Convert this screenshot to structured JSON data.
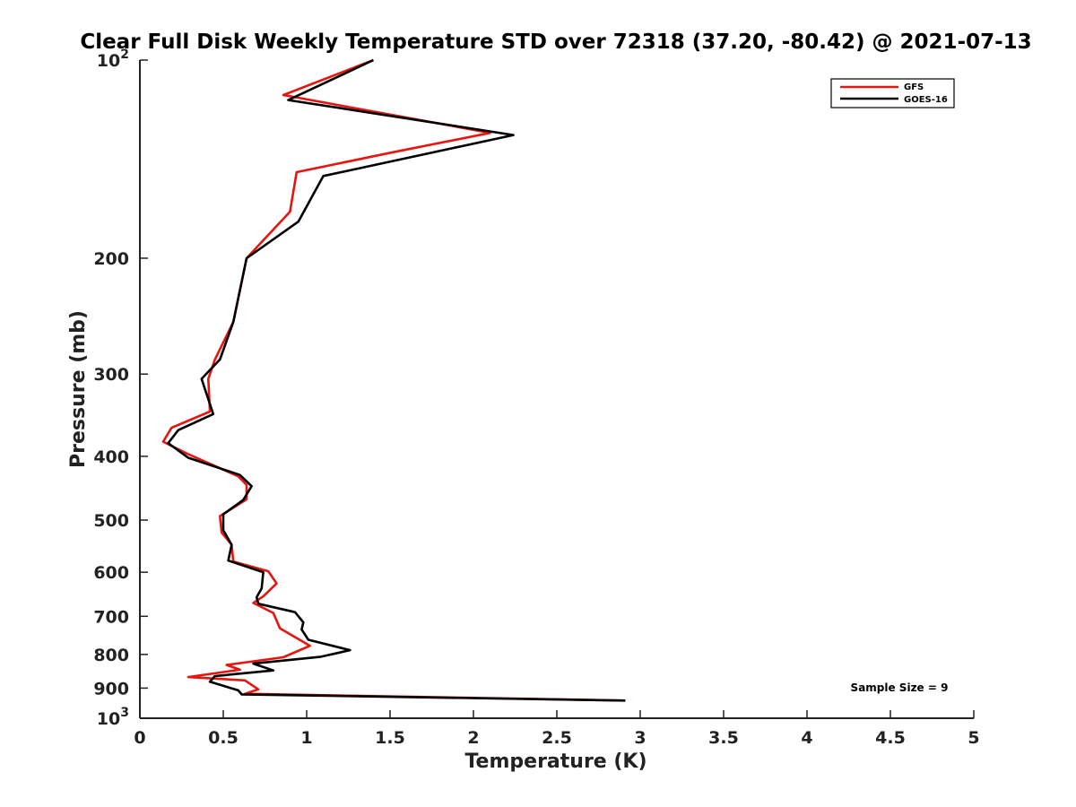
{
  "chart_data": {
    "type": "line",
    "title": "Clear Full Disk Weekly Temperature STD over 72318 (37.20, -80.42) @ 2021-07-13",
    "xlabel": "Temperature (K)",
    "ylabel": "Pressure (mb)",
    "xlim": [
      0,
      5
    ],
    "ylim": [
      100,
      1000
    ],
    "y_scale": "log",
    "y_inverted": true,
    "x_ticks": [
      0,
      0.5,
      1,
      1.5,
      2,
      2.5,
      3,
      3.5,
      4,
      4.5,
      5
    ],
    "x_tick_labels": [
      "0",
      "0.5",
      "1",
      "1.5",
      "2",
      "2.5",
      "3",
      "3.5",
      "4",
      "4.5",
      "5"
    ],
    "y_ticks": [
      100,
      200,
      300,
      400,
      500,
      600,
      700,
      800,
      900,
      1000
    ],
    "y_tick_labels": [
      {
        "base": "10",
        "exp": "2"
      },
      {
        "base": "200",
        "exp": ""
      },
      {
        "base": "300",
        "exp": ""
      },
      {
        "base": "400",
        "exp": ""
      },
      {
        "base": "500",
        "exp": ""
      },
      {
        "base": "600",
        "exp": ""
      },
      {
        "base": "700",
        "exp": ""
      },
      {
        "base": "800",
        "exp": ""
      },
      {
        "base": "900",
        "exp": ""
      },
      {
        "base": "10",
        "exp": "3"
      }
    ],
    "grid": false,
    "legend_position": "top-right",
    "series": [
      {
        "name": "GFS",
        "color": "#e8150f",
        "points": [
          [
            1.4,
            100
          ],
          [
            0.86,
            113
          ],
          [
            2.1,
            129
          ],
          [
            1.52,
            138
          ],
          [
            0.94,
            148
          ],
          [
            0.9,
            170
          ],
          [
            0.64,
            200
          ],
          [
            0.56,
            250
          ],
          [
            0.45,
            285
          ],
          [
            0.41,
            305
          ],
          [
            0.42,
            342
          ],
          [
            0.19,
            362
          ],
          [
            0.14,
            380
          ],
          [
            0.28,
            396
          ],
          [
            0.59,
            429
          ],
          [
            0.64,
            442
          ],
          [
            0.64,
            465
          ],
          [
            0.48,
            493
          ],
          [
            0.49,
            522
          ],
          [
            0.55,
            545
          ],
          [
            0.56,
            578
          ],
          [
            0.77,
            598
          ],
          [
            0.82,
            624
          ],
          [
            0.74,
            653
          ],
          [
            0.68,
            668
          ],
          [
            0.8,
            692
          ],
          [
            0.84,
            730
          ],
          [
            1.02,
            776
          ],
          [
            0.86,
            808
          ],
          [
            0.52,
            830
          ],
          [
            0.6,
            844
          ],
          [
            0.29,
            866
          ],
          [
            0.63,
            876
          ],
          [
            0.71,
            904
          ],
          [
            0.63,
            918
          ],
          [
            2.91,
            940
          ]
        ]
      },
      {
        "name": "GOES-16",
        "color": "#000000",
        "points": [
          [
            1.4,
            100
          ],
          [
            0.89,
            115
          ],
          [
            2.24,
            130
          ],
          [
            1.1,
            150
          ],
          [
            0.95,
            176
          ],
          [
            0.64,
            200
          ],
          [
            0.56,
            250
          ],
          [
            0.48,
            285
          ],
          [
            0.37,
            305
          ],
          [
            0.44,
            345
          ],
          [
            0.23,
            365
          ],
          [
            0.17,
            382
          ],
          [
            0.29,
            402
          ],
          [
            0.6,
            427
          ],
          [
            0.67,
            444
          ],
          [
            0.62,
            466
          ],
          [
            0.5,
            490
          ],
          [
            0.5,
            518
          ],
          [
            0.55,
            545
          ],
          [
            0.53,
            576
          ],
          [
            0.74,
            600
          ],
          [
            0.73,
            635
          ],
          [
            0.7,
            655
          ],
          [
            0.71,
            670
          ],
          [
            0.93,
            690
          ],
          [
            0.98,
            715
          ],
          [
            0.97,
            733
          ],
          [
            1.01,
            760
          ],
          [
            1.26,
            788
          ],
          [
            1.08,
            807
          ],
          [
            0.68,
            826
          ],
          [
            0.8,
            846
          ],
          [
            0.45,
            863
          ],
          [
            0.42,
            880
          ],
          [
            0.59,
            907
          ],
          [
            0.61,
            920
          ],
          [
            2.91,
            940
          ]
        ]
      }
    ],
    "annotations": [
      {
        "text": "Sample Size = 9"
      }
    ]
  }
}
